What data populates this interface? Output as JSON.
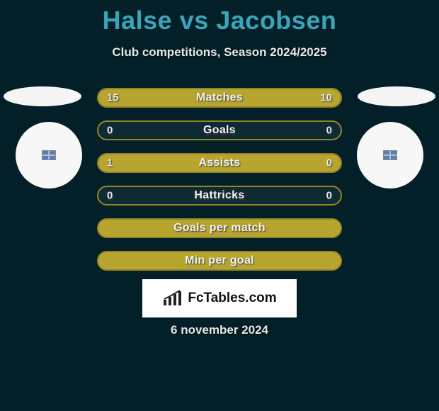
{
  "header": {
    "title": "Halse vs Jacobsen",
    "subtitle": "Club competitions, Season 2024/2025"
  },
  "colors": {
    "page_bg": "#032029",
    "title_color": "#3aa5b8",
    "text_color": "#e8e8e8",
    "bar_border_olive": "#938527",
    "bar_fill_olive": "#b7a530",
    "bar_bg_dark": "#0e2a32",
    "logo_bg": "#ffffff"
  },
  "stats": [
    {
      "label": "Matches",
      "left_value": "15",
      "right_value": "10",
      "left_width_pct": 60,
      "right_width_pct": 40,
      "show_values": true,
      "left_fill": "#b7a530",
      "right_fill": "#b7a530",
      "border": "#938527",
      "row_bg": "#0e2a32"
    },
    {
      "label": "Goals",
      "left_value": "0",
      "right_value": "0",
      "left_width_pct": 0,
      "right_width_pct": 0,
      "show_values": true,
      "left_fill": "#b7a530",
      "right_fill": "#b7a530",
      "border": "#938527",
      "row_bg": "#0e2a32"
    },
    {
      "label": "Assists",
      "left_value": "1",
      "right_value": "0",
      "left_width_pct": 80,
      "right_width_pct": 20,
      "show_values": true,
      "left_fill": "#b7a530",
      "right_fill": "#b7a530",
      "border": "#938527",
      "row_bg": "#0e2a32"
    },
    {
      "label": "Hattricks",
      "left_value": "0",
      "right_value": "0",
      "left_width_pct": 0,
      "right_width_pct": 0,
      "show_values": true,
      "left_fill": "#b7a530",
      "right_fill": "#b7a530",
      "border": "#938527",
      "row_bg": "#0e2a32"
    },
    {
      "label": "Goals per match",
      "left_value": "",
      "right_value": "",
      "left_width_pct": 100,
      "right_width_pct": 0,
      "show_values": false,
      "left_fill": "#b7a530",
      "right_fill": "#b7a530",
      "border": "#938527",
      "row_bg": "#b7a530"
    },
    {
      "label": "Min per goal",
      "left_value": "",
      "right_value": "",
      "left_width_pct": 100,
      "right_width_pct": 0,
      "show_values": false,
      "left_fill": "#b7a530",
      "right_fill": "#b7a530",
      "border": "#938527",
      "row_bg": "#b7a530"
    }
  ],
  "footer": {
    "logo_text": "FcTables.com",
    "date_text": "6 november 2024"
  }
}
